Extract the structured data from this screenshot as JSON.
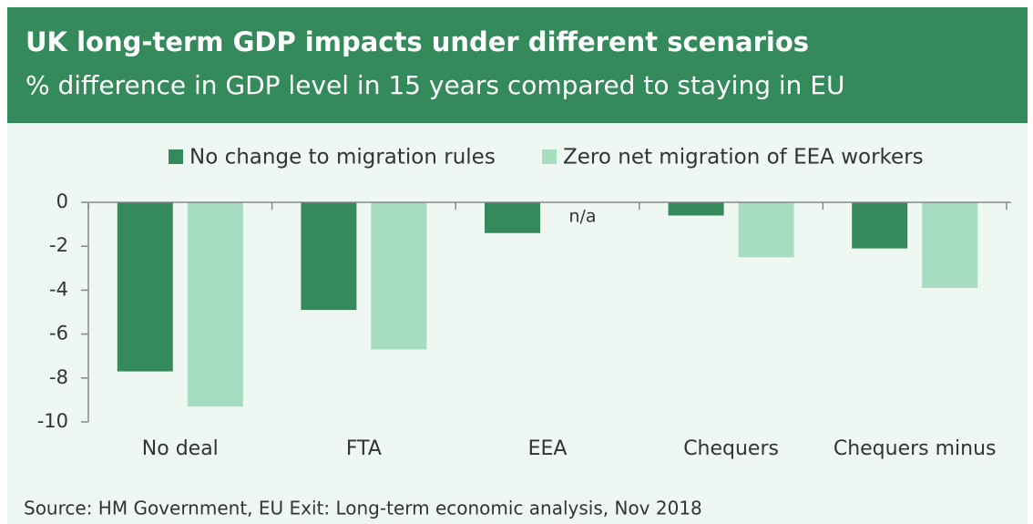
{
  "chart_data": {
    "type": "bar",
    "title": "UK long-term GDP impacts under different scenarios",
    "subtitle": "% difference in GDP level in 15 years compared to staying in EU",
    "categories": [
      "No deal",
      "FTA",
      "EEA",
      "Chequers",
      "Chequers minus"
    ],
    "series": [
      {
        "name": "No change to migration rules",
        "color": "#358a5b",
        "values": [
          -7.7,
          -4.9,
          -1.4,
          -0.6,
          -2.1
        ]
      },
      {
        "name": "Zero net migration of EEA workers",
        "color": "#a6dcc0",
        "values": [
          -9.3,
          -6.7,
          null,
          -2.5,
          -3.9
        ]
      }
    ],
    "annotations": [
      {
        "text": "n/a"
      }
    ],
    "ylim": [
      -10,
      0
    ],
    "yticks": [
      0,
      -2,
      -4,
      -6,
      -8,
      -10
    ],
    "legend": "top",
    "source": "Source: HM Government, EU Exit: Long-term economic analysis, Nov 2018"
  }
}
